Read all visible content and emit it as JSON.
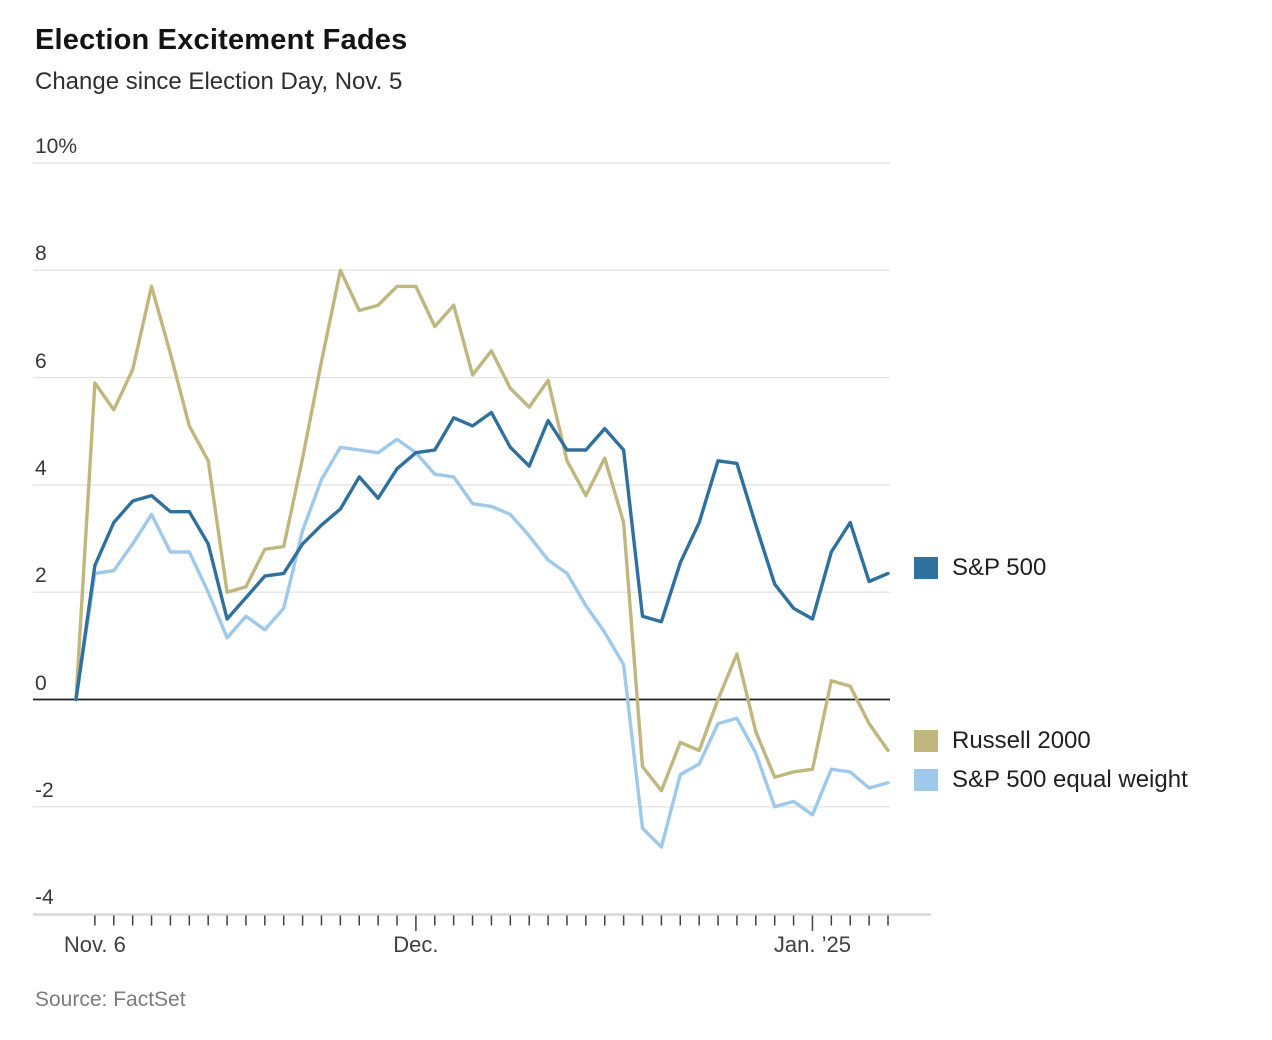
{
  "header": {
    "title": "Election Excitement Fades",
    "subtitle": "Change since Election Day, Nov. 5"
  },
  "source": {
    "label": "Source: FactSet"
  },
  "legend": [
    {
      "label": "S&P 500",
      "color": "#2f709f"
    },
    {
      "label": "Russell 2000",
      "color": "#c0b77f"
    },
    {
      "label": "S&P 500 equal weight",
      "color": "#9fc9ea"
    }
  ],
  "chart_data": {
    "type": "line",
    "title": "Election Excitement Fades",
    "subtitle": "Change since Election Day, Nov. 5",
    "x_unit": "trading days, Nov. 5 2024 through early Jan. 2025",
    "ylim": [
      -4,
      10
    ],
    "grid": "horizontal",
    "legend_position": "right",
    "y_ticks": [
      {
        "v": 10,
        "label": "10%"
      },
      {
        "v": 8,
        "label": "8"
      },
      {
        "v": 6,
        "label": "6"
      },
      {
        "v": 4,
        "label": "4"
      },
      {
        "v": 2,
        "label": "2"
      },
      {
        "v": 0,
        "label": "0"
      },
      {
        "v": -2,
        "label": "-2"
      },
      {
        "v": -4,
        "label": "-4"
      }
    ],
    "x_tick_labels": [
      {
        "label": "Nov. 6",
        "index": 1,
        "major": false
      },
      {
        "label": "Dec.",
        "index": 18,
        "major": true
      },
      {
        "label": "Jan. ’25",
        "index": 39,
        "major": true
      }
    ],
    "series": [
      {
        "name": "Russell 2000",
        "color": "#c0b77f",
        "values": [
          0,
          5.9,
          5.4,
          6.15,
          7.7,
          6.45,
          5.1,
          4.45,
          2.0,
          2.1,
          2.8,
          2.85,
          4.5,
          6.3,
          8.0,
          7.25,
          7.35,
          7.7,
          7.7,
          6.95,
          7.35,
          6.05,
          6.5,
          5.8,
          5.45,
          5.95,
          4.45,
          3.8,
          4.5,
          3.3,
          -1.25,
          -1.7,
          -0.8,
          -0.95,
          0.0,
          0.85,
          -0.6,
          -1.45,
          -1.35,
          -1.3,
          0.35,
          0.25,
          -0.45,
          -0.95
        ]
      },
      {
        "name": "S&P 500 equal weight",
        "color": "#9fc9ea",
        "values": [
          0,
          2.35,
          2.4,
          2.9,
          3.45,
          2.75,
          2.75,
          2.0,
          1.15,
          1.55,
          1.3,
          1.7,
          3.15,
          4.1,
          4.7,
          4.65,
          4.6,
          4.85,
          4.6,
          4.2,
          4.15,
          3.65,
          3.6,
          3.45,
          3.05,
          2.6,
          2.35,
          1.75,
          1.25,
          0.65,
          -2.4,
          -2.75,
          -1.4,
          -1.2,
          -0.45,
          -0.35,
          -1.0,
          -2.0,
          -1.9,
          -2.15,
          -1.3,
          -1.35,
          -1.65,
          -1.55
        ]
      },
      {
        "name": "S&P 500",
        "color": "#2f709f",
        "values": [
          0,
          2.5,
          3.3,
          3.7,
          3.8,
          3.5,
          3.5,
          2.9,
          1.5,
          1.9,
          2.3,
          2.35,
          2.9,
          3.25,
          3.55,
          4.15,
          3.75,
          4.3,
          4.6,
          4.65,
          5.25,
          5.1,
          5.35,
          4.7,
          4.35,
          5.2,
          4.65,
          4.65,
          5.05,
          4.65,
          1.55,
          1.45,
          2.55,
          3.3,
          4.45,
          4.4,
          3.25,
          2.15,
          1.7,
          1.5,
          2.75,
          3.3,
          2.2,
          2.35
        ]
      }
    ]
  },
  "layout_note": "values are percent change since Nov. 5"
}
